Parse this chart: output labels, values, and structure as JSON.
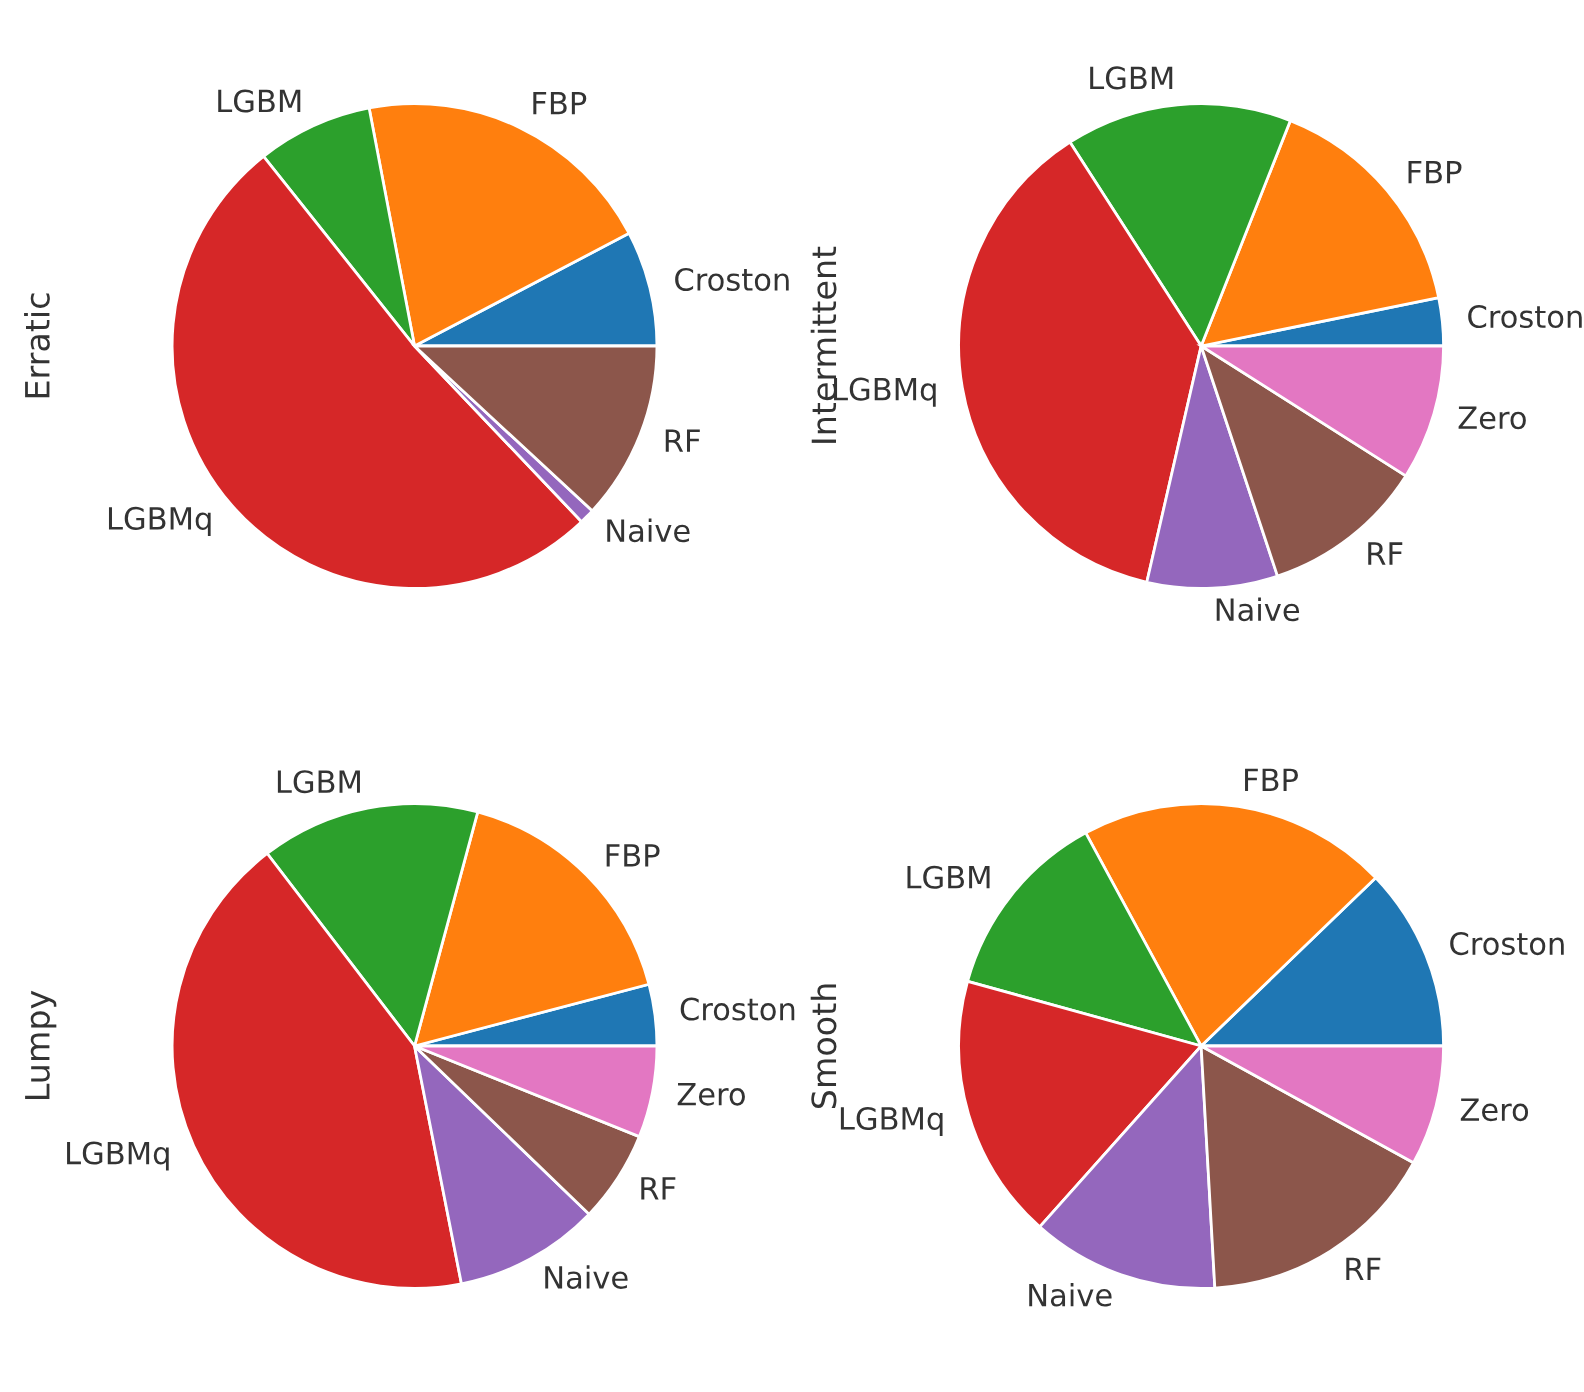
{
  "chart_data": [
    {
      "type": "pie",
      "ylabel": "Erratic",
      "categories": [
        "Croston",
        "FBP",
        "LGBM",
        "LGBMq",
        "Naive",
        "RF"
      ],
      "values": [
        7.7,
        20.3,
        7.7,
        51.4,
        1.0,
        11.9
      ],
      "colors": [
        "#1f77b4",
        "#ff7f0e",
        "#2ca02c",
        "#d62728",
        "#9467bd",
        "#8c564b"
      ]
    },
    {
      "type": "pie",
      "ylabel": "Intermittent",
      "categories": [
        "Croston",
        "FBP",
        "LGBM",
        "LGBMq",
        "Naive",
        "RF",
        "Zero"
      ],
      "values": [
        3.2,
        15.8,
        15.1,
        37.3,
        8.7,
        10.9,
        9.0
      ],
      "colors": [
        "#1f77b4",
        "#ff7f0e",
        "#2ca02c",
        "#d62728",
        "#9467bd",
        "#8c564b",
        "#e377c2"
      ]
    },
    {
      "type": "pie",
      "ylabel": "Lumpy",
      "categories": [
        "Croston",
        "FBP",
        "LGBM",
        "LGBMq",
        "Naive",
        "RF",
        "Zero"
      ],
      "values": [
        4.1,
        16.7,
        14.6,
        42.7,
        9.7,
        6.1,
        6.1
      ],
      "colors": [
        "#1f77b4",
        "#ff7f0e",
        "#2ca02c",
        "#d62728",
        "#9467bd",
        "#8c564b",
        "#e377c2"
      ]
    },
    {
      "type": "pie",
      "ylabel": "Smooth",
      "categories": [
        "Croston",
        "FBP",
        "LGBM",
        "LGBMq",
        "Naive",
        "RF",
        "Zero"
      ],
      "values": [
        12.2,
        20.7,
        12.8,
        17.7,
        12.5,
        16.1,
        8.0
      ],
      "colors": [
        "#1f77b4",
        "#ff7f0e",
        "#2ca02c",
        "#d62728",
        "#9467bd",
        "#8c564b",
        "#e377c2"
      ]
    }
  ]
}
